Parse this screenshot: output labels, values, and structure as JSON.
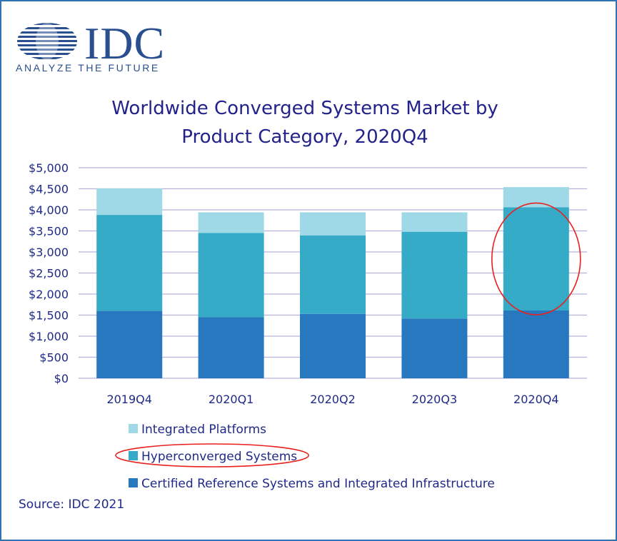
{
  "logo": {
    "name": "IDC",
    "tagline": "ANALYZE THE FUTURE"
  },
  "chart_data": {
    "type": "bar",
    "stacked": true,
    "title_lines": [
      "Worldwide Converged Systems Market by",
      "Product Category, 2020Q4"
    ],
    "categories": [
      "2019Q4",
      "2020Q1",
      "2020Q2",
      "2020Q3",
      "2020Q4"
    ],
    "series": [
      {
        "name": "Certified Reference Systems and Integrated Infrastructure",
        "color": "#2878c0",
        "values": [
          1600,
          1450,
          1530,
          1420,
          1610
        ]
      },
      {
        "name": "Hyperconverged Systems",
        "color": "#35abc8",
        "values": [
          2280,
          2000,
          1860,
          2060,
          2450
        ]
      },
      {
        "name": "Integrated Platforms",
        "color": "#9fd8e6",
        "values": [
          630,
          490,
          550,
          460,
          480
        ]
      }
    ],
    "legend_order": [
      "Integrated Platforms",
      "Hyperconverged Systems",
      "Certified Reference Systems and Integrated Infrastructure"
    ],
    "legend_position": "bottom",
    "y_ticks": [
      "$0",
      "$500",
      "$1,000",
      "$1,500",
      "$2,000",
      "$2,500",
      "$3,000",
      "$3,500",
      "$4,000",
      "$4,500",
      "$5,000"
    ],
    "ylim": [
      0,
      5000
    ],
    "grid": true,
    "highlight_color": "#e8201e",
    "highlight": {
      "category": "2020Q4",
      "series": "Hyperconverged Systems"
    }
  },
  "source": "Source: IDC 2021"
}
